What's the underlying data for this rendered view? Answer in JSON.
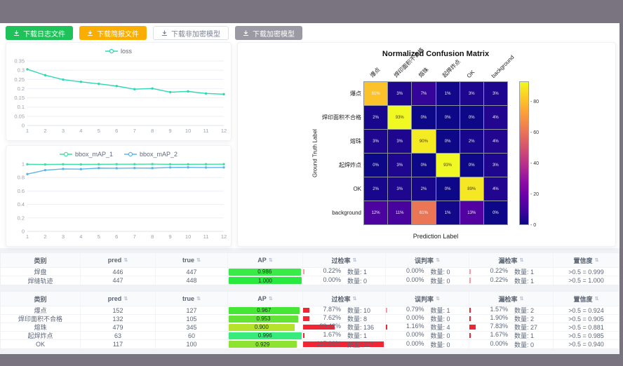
{
  "window": {
    "frame_color": "#7a7480"
  },
  "icons": {
    "toolbar_button": "download-icon",
    "table_sort": "sort-icon"
  },
  "toolbar": {
    "buttons": [
      {
        "label": "下载日志文件",
        "variant": "green",
        "bg": "#1fc159",
        "fg": "#ffffff"
      },
      {
        "label": "下载简报文件",
        "variant": "orange",
        "bg": "#fbae00",
        "fg": "#ffffff"
      },
      {
        "label": "下载非加密模型",
        "variant": "plain",
        "bg": "#ffffff",
        "fg": "#7a8190"
      },
      {
        "label": "下载加密模型",
        "variant": "gray",
        "bg": "#9b99a4",
        "fg": "#ffffff"
      }
    ]
  },
  "chart_data": [
    {
      "type": "line",
      "title": "loss",
      "x": [
        1,
        2,
        3,
        4,
        5,
        6,
        7,
        8,
        9,
        10,
        11,
        12
      ],
      "series": [
        {
          "name": "loss",
          "color": "#2fd8b5",
          "values": [
            0.305,
            0.273,
            0.249,
            0.237,
            0.226,
            0.214,
            0.197,
            0.201,
            0.181,
            0.185,
            0.174,
            0.17
          ]
        }
      ],
      "ylim": [
        0,
        0.35
      ],
      "yticks": [
        0,
        0.05,
        0.1,
        0.15,
        0.2,
        0.25,
        0.3,
        0.35
      ],
      "grid": true,
      "legend_position": "top"
    },
    {
      "type": "line",
      "title": "bbox_mAP",
      "x": [
        1,
        2,
        3,
        4,
        5,
        6,
        7,
        8,
        9,
        10,
        11,
        12
      ],
      "series": [
        {
          "name": "bbox_mAP_1",
          "color": "#3fe0a0",
          "values": [
            0.997,
            0.994,
            0.997,
            0.995,
            0.997,
            0.998,
            0.998,
            0.999,
            0.997,
            0.997,
            0.998,
            0.998
          ]
        },
        {
          "name": "bbox_mAP_2",
          "color": "#5ab6ea",
          "values": [
            0.851,
            0.91,
            0.928,
            0.925,
            0.94,
            0.938,
            0.941,
            0.94,
            0.95,
            0.951,
            0.949,
            0.95
          ]
        }
      ],
      "ylim": [
        0,
        1
      ],
      "yticks": [
        0,
        0.2,
        0.4,
        0.6,
        0.8,
        1
      ],
      "grid": true,
      "legend_position": "top"
    },
    {
      "type": "heatmap",
      "title": "Normalized Confusion Matrix",
      "xlabel": "Prediction Label",
      "ylabel": "Ground Truth Label",
      "labels": [
        "爆点",
        "焊印面积不合格",
        "熔珠",
        "起焊炸点",
        "OK",
        "background"
      ],
      "matrix": [
        [
          81,
          3,
          7,
          1,
          3,
          3
        ],
        [
          2,
          93,
          0,
          0,
          0,
          4
        ],
        [
          3,
          3,
          90,
          0,
          2,
          4
        ],
        [
          0,
          3,
          0,
          93,
          0,
          3
        ],
        [
          2,
          3,
          2,
          0,
          89,
          4
        ],
        [
          12,
          11,
          61,
          1,
          13,
          0
        ]
      ],
      "unit": "%",
      "vmax": 93,
      "colorbar_ticks": [
        0,
        20,
        40,
        60,
        80
      ],
      "colormap": "plasma"
    }
  ],
  "tables": [
    {
      "count_label": "数量",
      "headers": [
        {
          "key": "category",
          "label": "类别",
          "sortable": false
        },
        {
          "key": "pred",
          "label": "pred",
          "sortable": true
        },
        {
          "key": "true",
          "label": "true",
          "sortable": true
        },
        {
          "key": "ap",
          "label": "AP",
          "sortable": true
        },
        {
          "key": "overkill",
          "label": "过检率",
          "sortable": true
        },
        {
          "key": "misjudge",
          "label": "误判率",
          "sortable": true
        },
        {
          "key": "miss",
          "label": "漏检率",
          "sortable": true
        },
        {
          "key": "confidence",
          "label": "置信度",
          "sortable": true
        }
      ],
      "rows": [
        {
          "category": "焊盘",
          "pred": "446",
          "true": "447",
          "ap": "0.986",
          "ap_color": "#39ea49",
          "overkill": {
            "pct": "0.22%",
            "count": "1"
          },
          "misjudge": {
            "pct": "0.00%",
            "count": "0"
          },
          "miss": {
            "pct": "0.22%",
            "count": "1"
          },
          "confidence": ">0.5 = 0.999"
        },
        {
          "category": "焊缝轨迹",
          "pred": "447",
          "true": "448",
          "ap": "1.000",
          "ap_color": "#27e93e",
          "overkill": {
            "pct": "0.00%",
            "count": "0"
          },
          "misjudge": {
            "pct": "0.00%",
            "count": "0"
          },
          "miss": {
            "pct": "0.22%",
            "count": "1"
          },
          "confidence": ">0.5 = 1.000"
        }
      ]
    },
    {
      "count_label": "数量",
      "headers": [
        {
          "key": "category",
          "label": "类别",
          "sortable": false
        },
        {
          "key": "pred",
          "label": "pred",
          "sortable": true
        },
        {
          "key": "true",
          "label": "true",
          "sortable": true
        },
        {
          "key": "ap",
          "label": "AP",
          "sortable": true
        },
        {
          "key": "overkill",
          "label": "过检率",
          "sortable": true
        },
        {
          "key": "misjudge",
          "label": "误判率",
          "sortable": true
        },
        {
          "key": "miss",
          "label": "漏检率",
          "sortable": true
        },
        {
          "key": "confidence",
          "label": "置信度",
          "sortable": true
        }
      ],
      "rows": [
        {
          "category": "爆点",
          "pred": "152",
          "true": "127",
          "ap": "0.967",
          "ap_color": "#46e636",
          "overkill": {
            "pct": "7.87%",
            "count": "10"
          },
          "misjudge": {
            "pct": "0.79%",
            "count": "1"
          },
          "miss": {
            "pct": "1.57%",
            "count": "2"
          },
          "confidence": ">0.5 = 0.924"
        },
        {
          "category": "焊印面积不合格",
          "pred": "132",
          "true": "105",
          "ap": "0.953",
          "ap_color": "#62e336",
          "overkill": {
            "pct": "7.62%",
            "count": "8"
          },
          "misjudge": {
            "pct": "0.00%",
            "count": "0"
          },
          "miss": {
            "pct": "1.90%",
            "count": "2"
          },
          "confidence": ">0.5 = 0.905"
        },
        {
          "category": "熔珠",
          "pred": "479",
          "true": "345",
          "ap": "0.900",
          "ap_color": "#b5e32b",
          "overkill": {
            "pct": "39.42%",
            "count": "136"
          },
          "misjudge": {
            "pct": "1.16%",
            "count": "4"
          },
          "miss": {
            "pct": "7.83%",
            "count": "27"
          },
          "confidence": ">0.5 = 0.881"
        },
        {
          "category": "起焊炸点",
          "pred": "63",
          "true": "60",
          "ap": "0.996",
          "ap_color": "#37ec7c",
          "overkill": {
            "pct": "1.67%",
            "count": "1"
          },
          "misjudge": {
            "pct": "0.00%",
            "count": "0"
          },
          "miss": {
            "pct": "1.67%",
            "count": "1"
          },
          "confidence": ">0.5 = 0.985"
        },
        {
          "category": "OK",
          "pred": "117",
          "true": "100",
          "ap": "0.929",
          "ap_color": "#8ee231",
          "overkill": {
            "pct": "117.00%",
            "count": "117"
          },
          "misjudge": {
            "pct": "0.00%",
            "count": "0"
          },
          "miss": {
            "pct": "0.00%",
            "count": "0"
          },
          "confidence": ">0.5 = 0.940"
        }
      ]
    }
  ]
}
